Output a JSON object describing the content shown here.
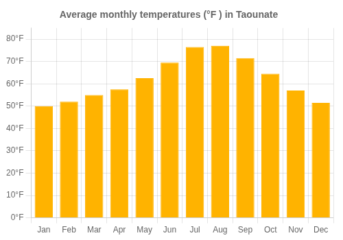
{
  "chart_data": {
    "type": "bar",
    "title": "Average monthly temperatures (°F ) in Taounate",
    "categories": [
      "Jan",
      "Feb",
      "Mar",
      "Apr",
      "May",
      "Jun",
      "Jul",
      "Aug",
      "Sep",
      "Oct",
      "Nov",
      "Dec"
    ],
    "values": [
      50.0,
      52.0,
      55.0,
      57.5,
      62.5,
      69.5,
      76.5,
      77.0,
      71.5,
      64.5,
      57.0,
      51.5
    ],
    "color": "#FFB300",
    "ylim": [
      0,
      85
    ],
    "yticks": [
      {
        "value": 0,
        "label": "0°F"
      },
      {
        "value": 10,
        "label": "10°F"
      },
      {
        "value": 20,
        "label": "20°F"
      },
      {
        "value": 30,
        "label": "30°F"
      },
      {
        "value": 40,
        "label": "40°F"
      },
      {
        "value": 50,
        "label": "50°F"
      },
      {
        "value": 60,
        "label": "60°F"
      },
      {
        "value": 70,
        "label": "70°F"
      },
      {
        "value": 80,
        "label": "80°F"
      }
    ],
    "grid": true
  }
}
